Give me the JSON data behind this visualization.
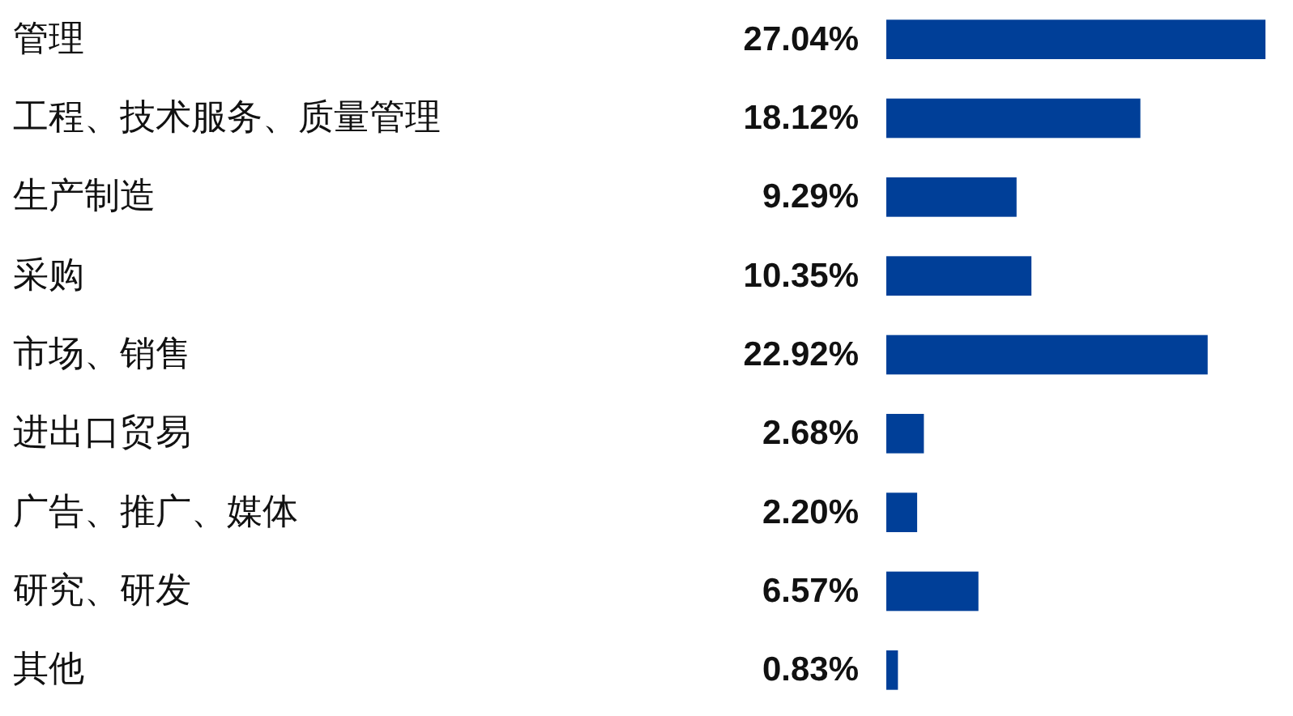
{
  "chart_data": {
    "type": "bar",
    "orientation": "horizontal",
    "categories": [
      "管理",
      "工程、技术服务、质量管理",
      "生产制造",
      "采购",
      "市场、销售",
      "进出口贸易",
      "广告、推广、媒体",
      "研究、研发",
      "其他"
    ],
    "values": [
      27.04,
      18.12,
      9.29,
      10.35,
      22.92,
      2.68,
      2.2,
      6.57,
      0.83
    ],
    "value_labels": [
      "27.04%",
      "18.12%",
      "9.29%",
      "10.35%",
      "22.92%",
      "2.68%",
      "2.20%",
      "6.57%",
      "0.83%"
    ],
    "color": "#003f98"
  }
}
